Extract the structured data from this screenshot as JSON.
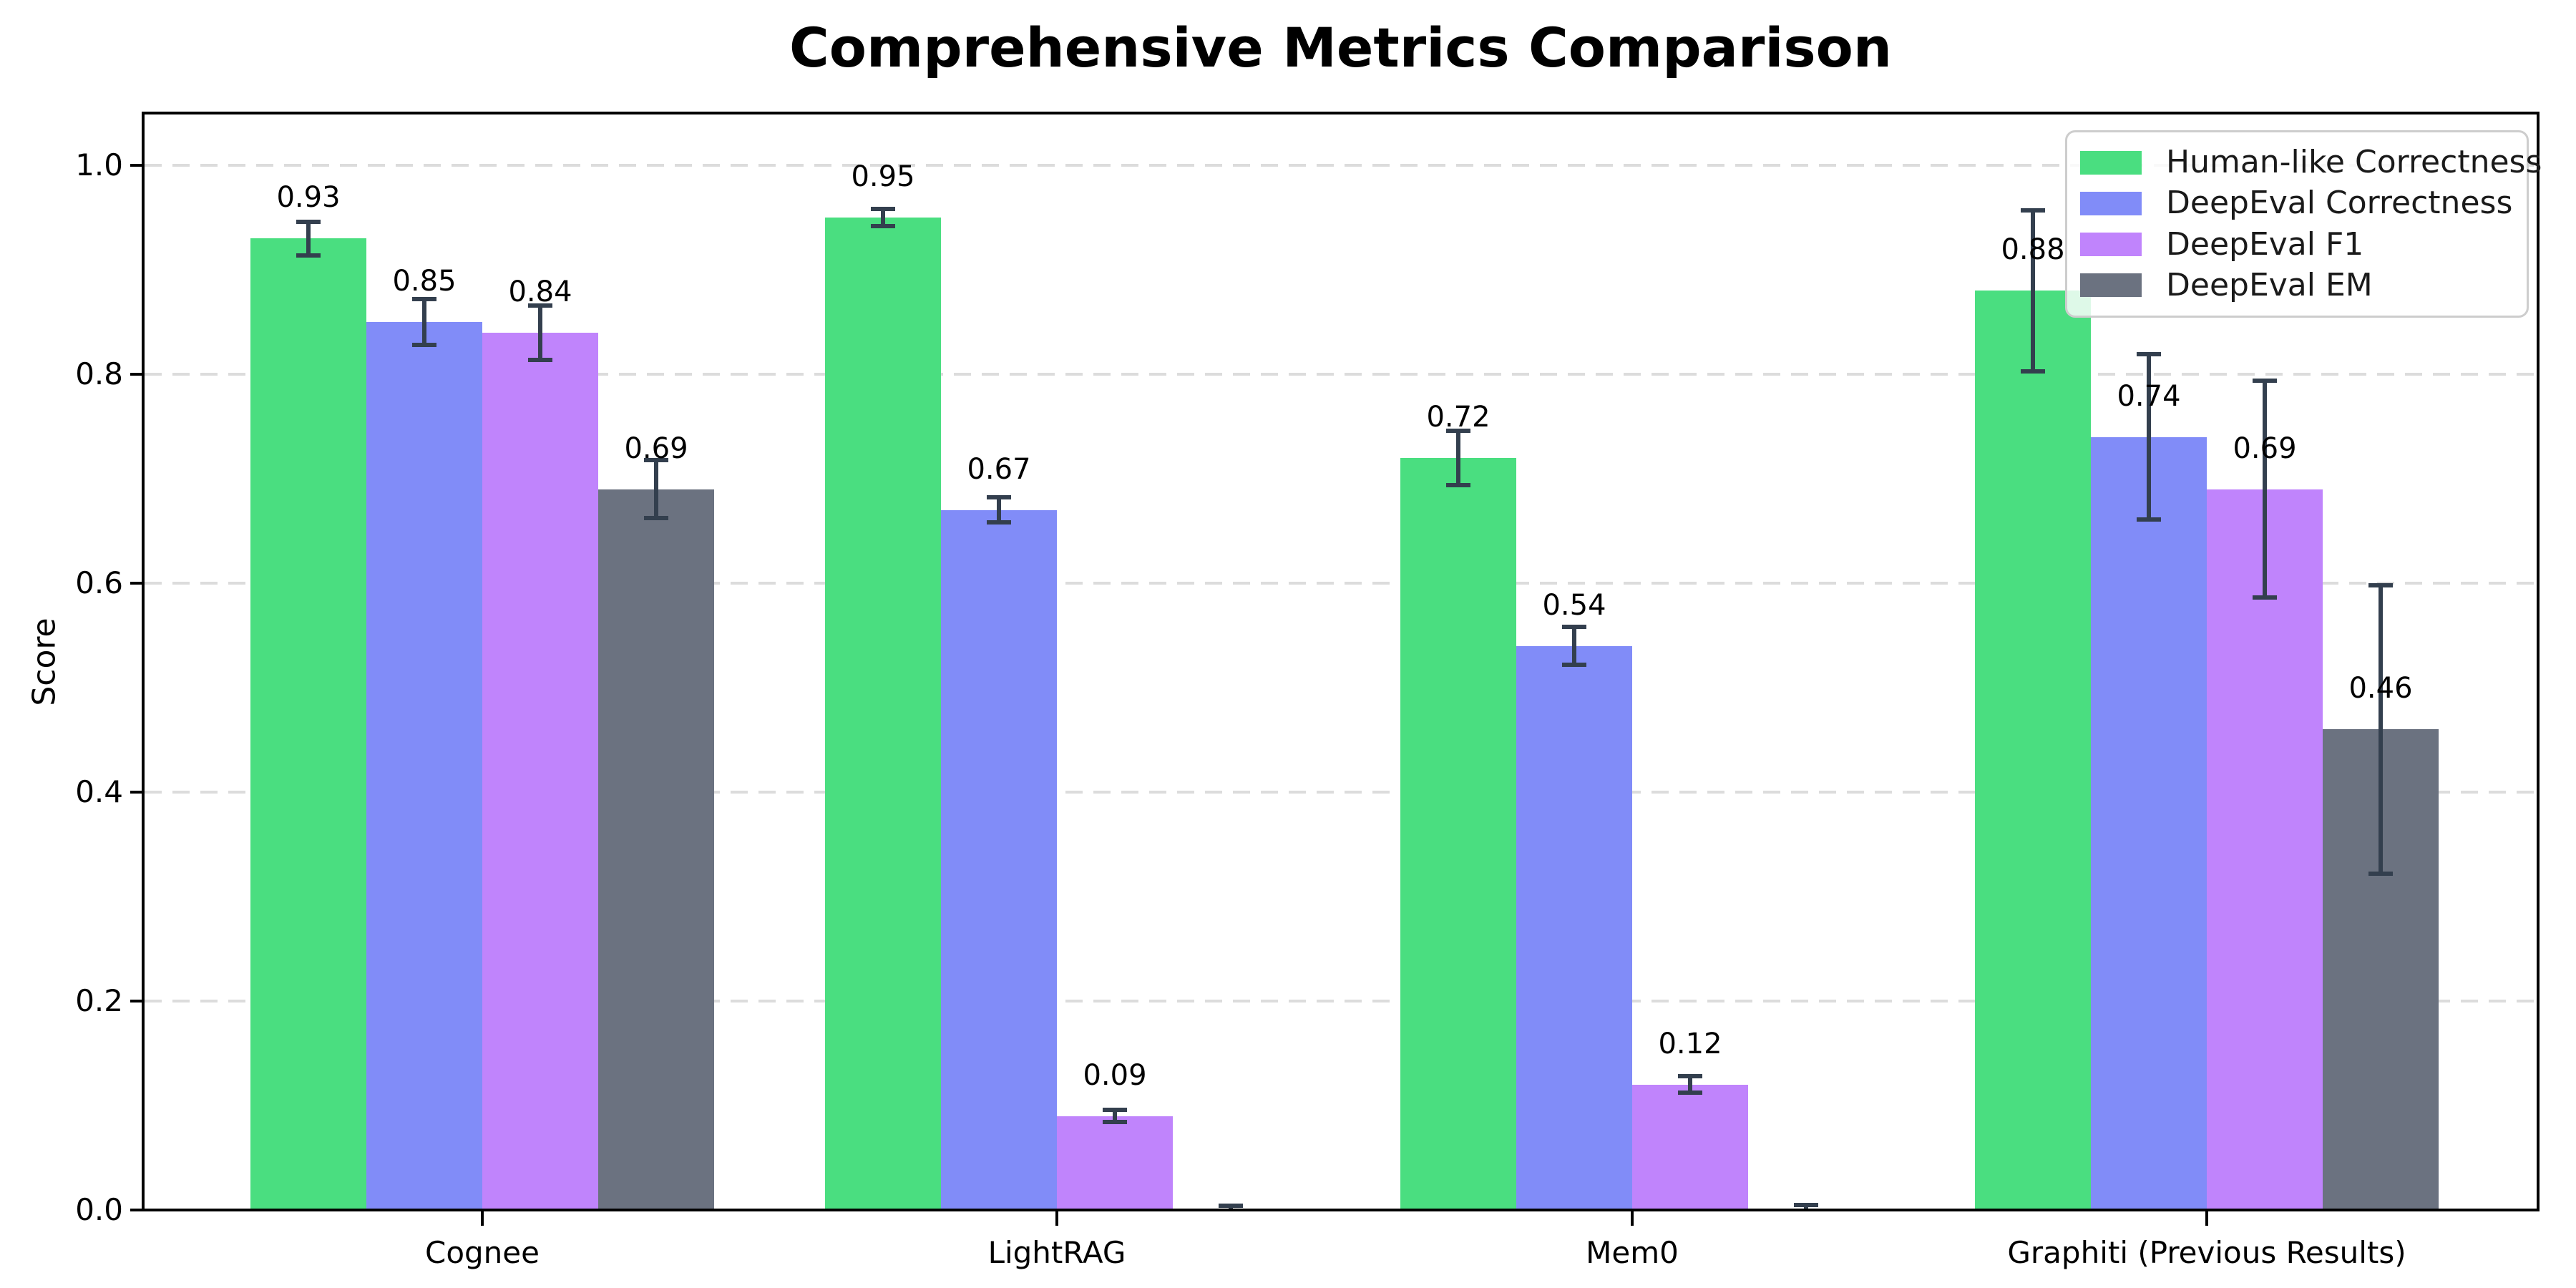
{
  "figure": {
    "background": "#ffffff"
  },
  "chart_data": {
    "type": "bar",
    "title": "Comprehensive Metrics Comparison",
    "ylabel": "Score",
    "xlabel": "",
    "categories": [
      "Cognee",
      "LightRAG",
      "Mem0",
      "Graphiti (Previous Results)"
    ],
    "series": [
      {
        "name": "Human-like Correctness",
        "color": "#4ade80",
        "values": [
          0.93,
          0.95,
          0.72,
          0.88
        ],
        "errors": [
          0.016,
          0.008,
          0.026,
          0.077
        ],
        "labels": [
          "0.93",
          "0.95",
          "0.72",
          "0.88"
        ]
      },
      {
        "name": "DeepEval Correctness",
        "color": "#818cf8",
        "values": [
          0.85,
          0.67,
          0.54,
          0.74
        ],
        "errors": [
          0.022,
          0.012,
          0.018,
          0.079
        ],
        "labels": [
          "0.85",
          "0.67",
          "0.54",
          "0.74"
        ]
      },
      {
        "name": "DeepEval F1",
        "color": "#c084fc",
        "values": [
          0.84,
          0.09,
          0.12,
          0.69
        ],
        "errors": [
          0.026,
          0.006,
          0.008,
          0.104
        ],
        "labels": [
          "0.84",
          "0.09",
          "0.12",
          "0.69"
        ]
      },
      {
        "name": "DeepEval EM",
        "color": "#6b7280",
        "values": [
          0.69,
          0.0,
          0.0,
          0.46
        ],
        "errors": [
          0.028,
          0.004,
          0.005,
          0.138
        ],
        "labels": [
          "0.69",
          null,
          null,
          "0.46"
        ]
      }
    ],
    "ylim": [
      0,
      1.05
    ],
    "yticks": [
      "0.0",
      "0.2",
      "0.4",
      "0.6",
      "0.8",
      "1.0"
    ],
    "grid": "dashed-horizontal",
    "legend_position": "upper-right",
    "error_bar_color": "#333f4e",
    "grid_color": "#dcdcdc",
    "axis_color": "#000000",
    "title_color": "#000000"
  }
}
